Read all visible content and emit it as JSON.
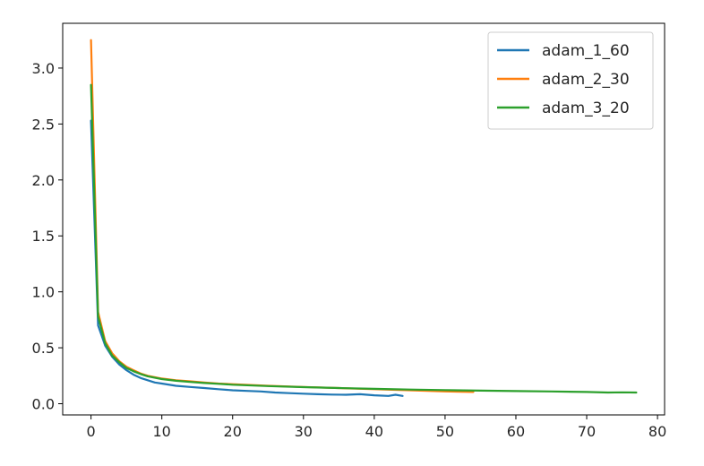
{
  "chart_data": {
    "type": "line",
    "title": "",
    "xlabel": "",
    "ylabel": "",
    "xlim": [
      -4,
      81
    ],
    "ylim": [
      -0.1,
      3.4
    ],
    "xticks": [
      0,
      10,
      20,
      30,
      40,
      50,
      60,
      70,
      80
    ],
    "yticks": [
      0.0,
      0.5,
      1.0,
      1.5,
      2.0,
      2.5,
      3.0
    ],
    "xtick_labels": [
      "0",
      "10",
      "20",
      "30",
      "40",
      "50",
      "60",
      "70",
      "80"
    ],
    "ytick_labels": [
      "0.0",
      "0.5",
      "1.0",
      "1.5",
      "2.0",
      "2.5",
      "3.0"
    ],
    "grid": false,
    "legend_position": "top-right",
    "series": [
      {
        "name": "adam_1_60",
        "color": "#1f77b4",
        "x": [
          0,
          1,
          2,
          3,
          4,
          5,
          6,
          7,
          8,
          9,
          10,
          12,
          14,
          16,
          18,
          20,
          22,
          24,
          26,
          28,
          30,
          32,
          34,
          36,
          38,
          40,
          42,
          43,
          44
        ],
        "y": [
          2.53,
          0.7,
          0.52,
          0.42,
          0.35,
          0.3,
          0.26,
          0.23,
          0.21,
          0.19,
          0.18,
          0.16,
          0.15,
          0.14,
          0.13,
          0.12,
          0.115,
          0.11,
          0.1,
          0.095,
          0.09,
          0.085,
          0.082,
          0.08,
          0.085,
          0.075,
          0.07,
          0.08,
          0.07
        ]
      },
      {
        "name": "adam_2_30",
        "color": "#ff7f0e",
        "x": [
          0,
          1,
          2,
          3,
          4,
          5,
          6,
          7,
          8,
          10,
          12,
          14,
          16,
          18,
          20,
          25,
          30,
          35,
          40,
          45,
          50,
          54
        ],
        "y": [
          3.25,
          0.82,
          0.56,
          0.45,
          0.38,
          0.33,
          0.3,
          0.27,
          0.25,
          0.225,
          0.21,
          0.2,
          0.19,
          0.18,
          0.175,
          0.16,
          0.15,
          0.14,
          0.13,
          0.12,
          0.11,
          0.105
        ]
      },
      {
        "name": "adam_3_20",
        "color": "#2ca02c",
        "x": [
          0,
          1,
          2,
          3,
          4,
          5,
          6,
          7,
          8,
          10,
          12,
          14,
          16,
          18,
          20,
          25,
          30,
          35,
          40,
          45,
          50,
          55,
          60,
          65,
          70,
          73,
          75,
          77
        ],
        "y": [
          2.85,
          0.78,
          0.54,
          0.43,
          0.37,
          0.32,
          0.29,
          0.265,
          0.245,
          0.22,
          0.205,
          0.195,
          0.185,
          0.178,
          0.17,
          0.158,
          0.148,
          0.14,
          0.133,
          0.127,
          0.122,
          0.117,
          0.113,
          0.11,
          0.105,
          0.1,
          0.102,
          0.1
        ]
      }
    ]
  }
}
